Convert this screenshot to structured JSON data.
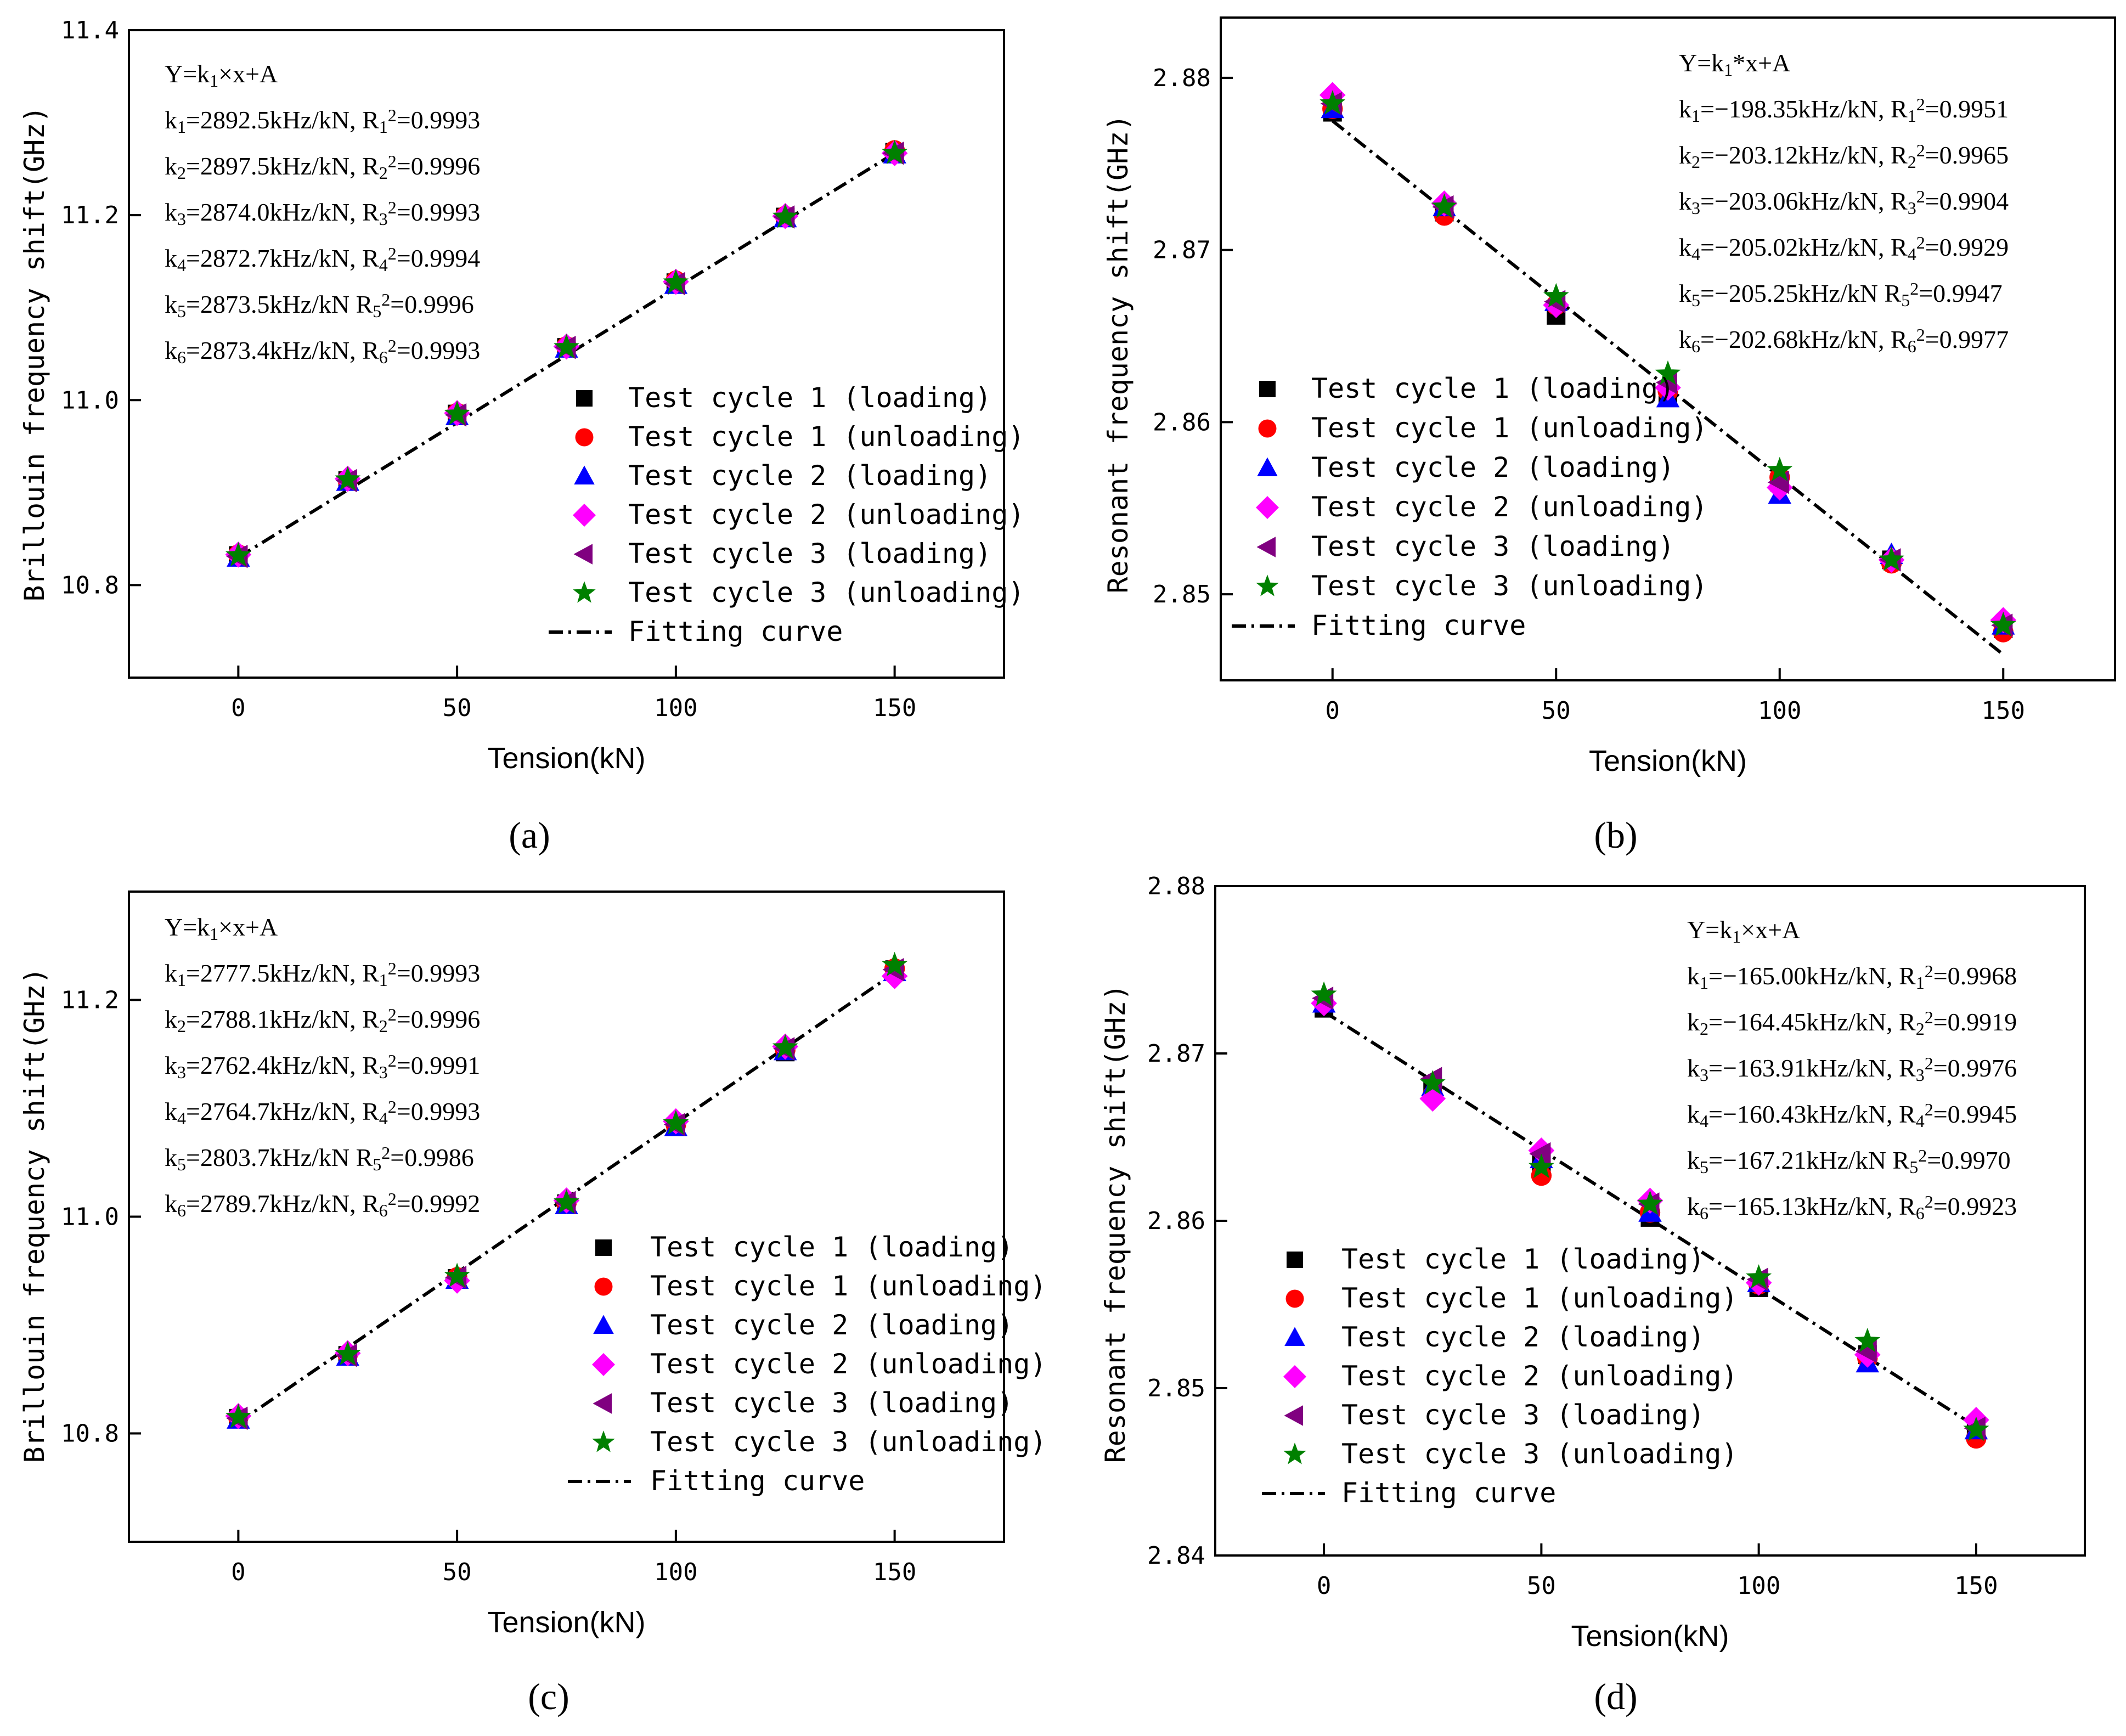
{
  "figure": {
    "panel_labels": [
      "(a)",
      "(b)",
      "(c)",
      "(d)"
    ]
  },
  "legend_entries": [
    "Test cycle 1 (loading)",
    "Test cycle 1 (unloading)",
    "Test cycle 2 (loading)",
    "Test cycle 2 (unloading)",
    "Test cycle 3 (loading)",
    "Test cycle 3 (unloading)",
    "Fitting curve"
  ],
  "series_style": [
    {
      "marker": "square",
      "color": "#000000"
    },
    {
      "marker": "circle",
      "color": "#ff0000"
    },
    {
      "marker": "triangle-up",
      "color": "#0000ff"
    },
    {
      "marker": "diamond",
      "color": "#ff00ff"
    },
    {
      "marker": "triangle-left",
      "color": "#800080"
    },
    {
      "marker": "star",
      "color": "#008000"
    }
  ],
  "chart_data": [
    {
      "type": "scatter",
      "label": "(a)",
      "xlabel": "Tension(kN)",
      "ylabel": "Brillouin frequency shift(GHz)",
      "xlim": [
        -25,
        175
      ],
      "ylim": [
        10.7,
        11.4
      ],
      "xticks": [
        0,
        50,
        100,
        150
      ],
      "xtick_labels": [
        "0",
        "50",
        "100",
        "150"
      ],
      "yticks": [
        10.8,
        11.0,
        11.2,
        11.4
      ],
      "ytick_labels": [
        "10.8",
        "11.0",
        "11.2",
        "11.4"
      ],
      "fit": {
        "x": [
          0,
          150
        ],
        "y": [
          10.83,
          11.267
        ]
      },
      "annotation_lines": [
        "Y=k₁×x+A",
        "k₁=2892.5kHz/kN, R₁²=0.9993",
        "k₂=2897.5kHz/kN, R₂²=0.9996",
        "k₃=2874.0kHz/kN, R₃²=0.9993",
        "k₄=2872.7kHz/kN, R₄²=0.9994",
        "k₅=2873.5kHz/kN R₅²=0.9996",
        "k₆=2873.4kHz/kN, R₆²=0.9993"
      ],
      "x": [
        0,
        25,
        50,
        75,
        100,
        125,
        150
      ],
      "series": [
        {
          "name": "Test cycle 1 (loading)",
          "values": [
            10.832,
            10.913,
            10.985,
            11.057,
            11.127,
            11.198,
            11.268
          ]
        },
        {
          "name": "Test cycle 1 (unloading)",
          "values": [
            10.833,
            10.914,
            10.986,
            11.058,
            11.129,
            11.199,
            11.27
          ]
        },
        {
          "name": "Test cycle 2 (loading)",
          "values": [
            10.83,
            10.912,
            10.983,
            11.056,
            11.125,
            11.197,
            11.266
          ]
        },
        {
          "name": "Test cycle 2 (unloading)",
          "values": [
            10.833,
            10.915,
            10.986,
            11.058,
            11.128,
            11.199,
            11.267
          ]
        },
        {
          "name": "Test cycle 3 (loading)",
          "values": [
            10.831,
            10.913,
            10.984,
            11.057,
            11.126,
            11.198,
            11.267
          ]
        },
        {
          "name": "Test cycle 3 (unloading)",
          "values": [
            10.832,
            10.914,
            10.985,
            11.057,
            11.127,
            11.198,
            11.267
          ]
        }
      ]
    },
    {
      "type": "scatter",
      "label": "(b)",
      "xlabel": "Tension(kN)",
      "ylabel": "Resonant frequency shift(GHz)",
      "xlim": [
        -25,
        175
      ],
      "ylim": [
        2.845,
        2.8835
      ],
      "xticks": [
        0,
        50,
        100,
        150
      ],
      "xtick_labels": [
        "0",
        "50",
        "100",
        "150"
      ],
      "yticks": [
        2.85,
        2.86,
        2.87,
        2.88
      ],
      "ytick_labels": [
        "2.85",
        "2.86",
        "2.87",
        "2.88"
      ],
      "fit": {
        "x": [
          0,
          150
        ],
        "y": [
          2.8775,
          2.8465
        ]
      },
      "annotation_lines": [
        "Y=k₁*x+A",
        "k₁=−198.35kHz/kN, R₁²=0.9951",
        "k₂=−203.12kHz/kN, R₂²=0.9965",
        "k₃=−203.06kHz/kN, R₃²=0.9904",
        "k₄=−205.02kHz/kN, R₄²=0.9929",
        "k₅=−205.25kHz/kN R₅²=0.9947",
        "k₆=−202.68kHz/kN, R₆²=0.9977"
      ],
      "x": [
        0,
        25,
        50,
        75,
        100,
        125,
        150
      ],
      "series": [
        {
          "name": "Test cycle 1 (loading)",
          "values": [
            2.878,
            2.8722,
            2.8662,
            2.8615,
            2.8565,
            2.852,
            2.848
          ]
        },
        {
          "name": "Test cycle 1 (unloading)",
          "values": [
            2.8782,
            2.872,
            2.8668,
            2.8618,
            2.8568,
            2.8518,
            2.8478
          ]
        },
        {
          "name": "Test cycle 2 (loading)",
          "values": [
            2.8782,
            2.8725,
            2.867,
            2.8614,
            2.8558,
            2.8523,
            2.8482
          ]
        },
        {
          "name": "Test cycle 2 (unloading)",
          "values": [
            2.879,
            2.8727,
            2.8668,
            2.862,
            2.8562,
            2.852,
            2.8485
          ]
        },
        {
          "name": "Test cycle 3 (loading)",
          "values": [
            2.8785,
            2.8725,
            2.867,
            2.8623,
            2.8565,
            2.852,
            2.8482
          ]
        },
        {
          "name": "Test cycle 3 (unloading)",
          "values": [
            2.8785,
            2.8725,
            2.8673,
            2.8628,
            2.8572,
            2.852,
            2.8482
          ]
        }
      ]
    },
    {
      "type": "scatter",
      "label": "(c)",
      "xlabel": "Tension(kN)",
      "ylabel": "Brillouin frequency shift(GHz)",
      "xlim": [
        -25,
        175
      ],
      "ylim": [
        10.7,
        11.3
      ],
      "xticks": [
        0,
        50,
        100,
        150
      ],
      "xtick_labels": [
        "0",
        "50",
        "100",
        "150"
      ],
      "yticks": [
        10.8,
        11.0,
        11.2
      ],
      "ytick_labels": [
        "10.8",
        "11.0",
        "11.2"
      ],
      "fit": {
        "x": [
          0,
          150
        ],
        "y": [
          10.81,
          11.225
        ]
      },
      "annotation_lines": [
        "Y=k₁×x+A",
        "k₁=2777.5kHz/kN, R₁²=0.9993",
        "k₂=2788.1kHz/kN, R₂²=0.9996",
        "k₃=2762.4kHz/kN, R₃²=0.9991",
        "k₄=2764.7kHz/kN, R₄²=0.9993",
        "k₅=2803.7kHz/kN R₅²=0.9986",
        "k₆=2789.7kHz/kN, R₆²=0.9992"
      ],
      "x": [
        0,
        25,
        50,
        75,
        100,
        125,
        150
      ],
      "series": [
        {
          "name": "Test cycle 1 (loading)",
          "values": [
            10.814,
            10.872,
            10.943,
            11.012,
            11.083,
            11.152,
            11.228
          ]
        },
        {
          "name": "Test cycle 1 (unloading)",
          "values": [
            10.815,
            10.873,
            10.944,
            11.013,
            11.085,
            11.154,
            11.229
          ]
        },
        {
          "name": "Test cycle 2 (loading)",
          "values": [
            10.813,
            10.871,
            10.942,
            11.011,
            11.083,
            11.153,
            11.226
          ]
        },
        {
          "name": "Test cycle 2 (unloading)",
          "values": [
            10.816,
            10.874,
            10.941,
            11.015,
            11.088,
            11.157,
            11.222
          ]
        },
        {
          "name": "Test cycle 3 (loading)",
          "values": [
            10.814,
            10.872,
            10.944,
            11.013,
            11.085,
            11.155,
            11.228
          ]
        },
        {
          "name": "Test cycle 3 (unloading)",
          "values": [
            10.815,
            10.873,
            10.945,
            11.013,
            11.086,
            11.156,
            11.232
          ]
        }
      ]
    },
    {
      "type": "scatter",
      "label": "(d)",
      "xlabel": "Tension(kN)",
      "ylabel": "Resonant frequency shift(GHz)",
      "xlim": [
        -25,
        175
      ],
      "ylim": [
        2.84,
        2.88
      ],
      "xticks": [
        0,
        50,
        100,
        150
      ],
      "xtick_labels": [
        "0",
        "50",
        "100",
        "150"
      ],
      "yticks": [
        2.84,
        2.85,
        2.86,
        2.87,
        2.88
      ],
      "ytick_labels": [
        "2.84",
        "2.85",
        "2.86",
        "2.87",
        "2.88"
      ],
      "fit": {
        "x": [
          0,
          150
        ],
        "y": [
          2.8725,
          2.8477
        ]
      },
      "annotation_lines": [
        "Y=k₁×x+A",
        "k₁=−165.00kHz/kN, R₁²=0.9968",
        "k₂=−164.45kHz/kN, R₂²=0.9919",
        "k₃=−163.91kHz/kN, R₃²=0.9976",
        "k₄=−160.43kHz/kN, R₄²=0.9945",
        "k₅=−167.21kHz/kN R₅²=0.9970",
        "k₆=−165.13kHz/kN, R₆²=0.9923"
      ],
      "x": [
        0,
        25,
        50,
        75,
        100,
        125,
        150
      ],
      "series": [
        {
          "name": "Test cycle 1 (loading)",
          "values": [
            2.8727,
            2.868,
            2.8635,
            2.8602,
            2.856,
            2.852,
            2.8473
          ]
        },
        {
          "name": "Test cycle 1 (unloading)",
          "values": [
            2.873,
            2.8675,
            2.8627,
            2.8605,
            2.8562,
            2.8518,
            2.847
          ]
        },
        {
          "name": "Test cycle 2 (loading)",
          "values": [
            2.873,
            2.868,
            2.8637,
            2.8605,
            2.8563,
            2.8515,
            2.8475
          ]
        },
        {
          "name": "Test cycle 2 (unloading)",
          "values": [
            2.873,
            2.8673,
            2.8642,
            2.8612,
            2.8563,
            2.852,
            2.8481
          ]
        },
        {
          "name": "Test cycle 3 (loading)",
          "values": [
            2.8733,
            2.8685,
            2.864,
            2.861,
            2.8565,
            2.8522,
            2.8476
          ]
        },
        {
          "name": "Test cycle 3 (unloading)",
          "values": [
            2.8735,
            2.8682,
            2.8632,
            2.861,
            2.8566,
            2.8528,
            2.8475
          ]
        }
      ]
    }
  ]
}
